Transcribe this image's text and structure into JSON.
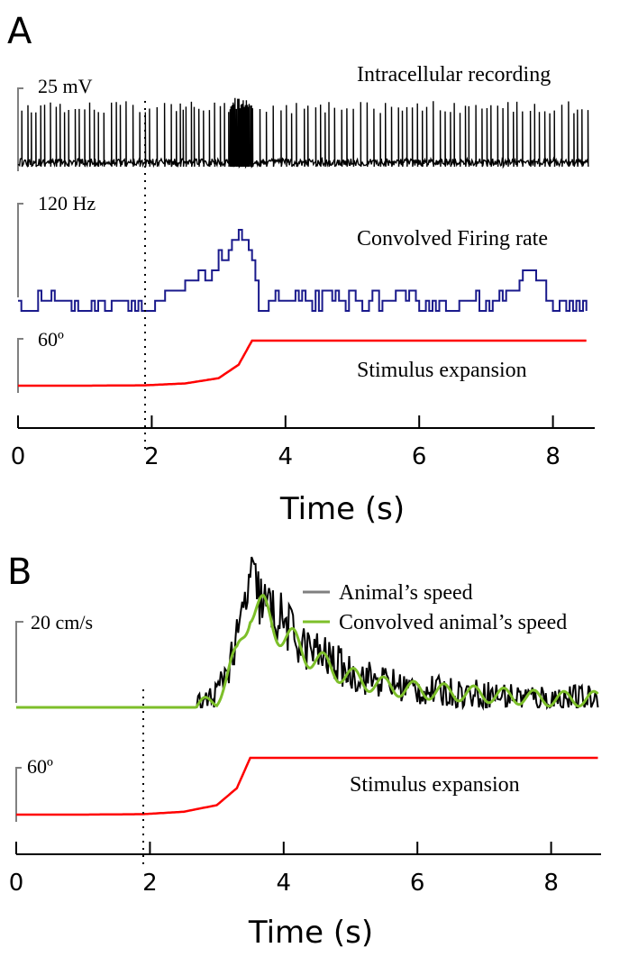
{
  "colors": {
    "intracellular": "#000000",
    "firing_rate": "#1a1a8c",
    "stimulus": "#ff0000",
    "speed": "#000000",
    "speed_convolved": "#7dbf2a",
    "scalebar": "#808080"
  },
  "panels": [
    {
      "letter": "A",
      "xlabel": "Time (s)",
      "xlim": [
        0,
        8.5
      ],
      "ticks": [
        "0",
        "2",
        "4",
        "6",
        "8"
      ],
      "stimulus_onset_dotted_line_s": 1.9,
      "traces": [
        {
          "label": "Intracellular recording",
          "scalebar": "25 mV"
        },
        {
          "label": "Convolved Firing rate",
          "scalebar": "120 Hz"
        },
        {
          "label": "Stimulus expansion",
          "scalebar": "60º"
        }
      ]
    },
    {
      "letter": "B",
      "xlabel": "Time (s)",
      "xlim": [
        0,
        8.7
      ],
      "ticks": [
        "0",
        "2",
        "4",
        "6",
        "8"
      ],
      "stimulus_onset_dotted_line_s": 1.9,
      "legend": [
        "Animal’s speed",
        "Convolved animal’s speed"
      ],
      "traces": [
        {
          "label": "",
          "scalebar": "20 cm/s"
        },
        {
          "label": "Stimulus expansion",
          "scalebar": "60º"
        }
      ]
    }
  ],
  "chart_data": [
    {
      "type": "line",
      "title": "",
      "xlabel": "Time (s)",
      "xlim": [
        0,
        8.5
      ],
      "series": [
        {
          "name": "Intracellular recording",
          "unit": "mV",
          "scalebar": 25,
          "x": [
            0,
            1,
            2,
            3,
            3.5,
            4,
            5,
            6,
            7,
            8,
            8.5
          ],
          "values": [
            0,
            0,
            0,
            0,
            0,
            0,
            0,
            0,
            0,
            0,
            0
          ]
        },
        {
          "name": "Convolved Firing rate",
          "unit": "Hz",
          "scalebar": 120,
          "x": [
            0,
            0.5,
            1,
            1.5,
            2,
            2.5,
            2.8,
            3.0,
            3.2,
            3.4,
            3.6,
            4,
            5,
            6,
            7,
            7.7,
            8,
            8.5
          ],
          "values": [
            0,
            18,
            0,
            18,
            0,
            35,
            50,
            70,
            90,
            120,
            20,
            10,
            15,
            10,
            10,
            50,
            10,
            0
          ]
        },
        {
          "name": "Stimulus expansion",
          "unit": "deg",
          "scalebar": 60,
          "x": [
            0,
            1,
            1.9,
            2.5,
            3.0,
            3.3,
            3.5,
            4,
            6,
            8,
            8.5
          ],
          "values": [
            0,
            0,
            0.5,
            3,
            10,
            28,
            60,
            60,
            60,
            60,
            60
          ]
        }
      ]
    },
    {
      "type": "line",
      "title": "",
      "xlabel": "Time (s)",
      "xlim": [
        0,
        8.7
      ],
      "series": [
        {
          "name": "Animal’s speed",
          "unit": "cm/s",
          "scalebar": 20,
          "x": [
            0,
            2.7,
            3.0,
            3.3,
            3.5,
            3.7,
            4.0,
            4.3,
            4.6,
            5.0,
            5.5,
            6.0,
            7.0,
            8.0,
            8.7
          ],
          "values": [
            0,
            0,
            3,
            15,
            30,
            24,
            20,
            14,
            12,
            8,
            6,
            4,
            3,
            2,
            2
          ]
        },
        {
          "name": "Convolved animal’s speed",
          "unit": "cm/s",
          "scalebar": 20,
          "x": [
            0,
            2.7,
            3.0,
            3.3,
            3.5,
            3.7,
            4.0,
            4.3,
            4.6,
            5.0,
            5.5,
            6.0,
            7.0,
            8.0,
            8.7
          ],
          "values": [
            0,
            0,
            2,
            12,
            24,
            22,
            17,
            13,
            10,
            7,
            5,
            4,
            3,
            2,
            2
          ]
        },
        {
          "name": "Stimulus expansion",
          "unit": "deg",
          "scalebar": 60,
          "x": [
            0,
            1,
            1.9,
            2.5,
            3.0,
            3.3,
            3.5,
            4,
            6,
            8,
            8.7
          ],
          "values": [
            0,
            0,
            0.5,
            3,
            10,
            28,
            60,
            60,
            60,
            60,
            60
          ]
        }
      ]
    }
  ]
}
